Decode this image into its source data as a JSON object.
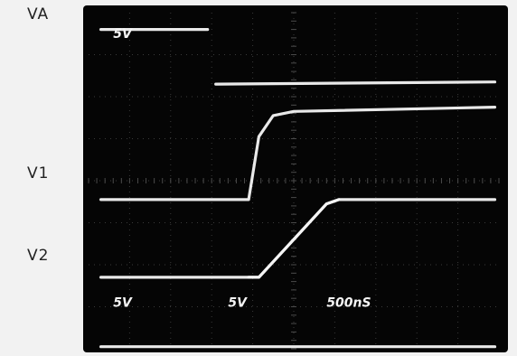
{
  "chart_data": {
    "type": "line",
    "title": "",
    "xlabel": "",
    "ylabel": "",
    "grid": true,
    "x_unit": "div",
    "y_unit": "div",
    "xlim": [
      0,
      10
    ],
    "ylim": [
      -4,
      4
    ],
    "channel_labels": [
      "VA",
      "V1",
      "V2"
    ],
    "scale_annotations": [
      {
        "id": "va_volts",
        "text": "5V",
        "x": 0.6,
        "y": 3.4
      },
      {
        "id": "ch1_volts",
        "text": "5V",
        "x": 0.6,
        "y": -3.0
      },
      {
        "id": "ch2_volts",
        "text": "5V",
        "x": 3.4,
        "y": -3.0
      },
      {
        "id": "timebase",
        "text": "500nS",
        "x": 5.8,
        "y": -3.0
      }
    ],
    "series": [
      {
        "label_index": 0,
        "x": [
          0.3,
          2.9,
          null,
          3.1,
          9.9
        ],
        "y": [
          3.6,
          3.6,
          null,
          2.3,
          2.35
        ]
      },
      {
        "label_index": 1,
        "x": [
          0.3,
          3.9,
          4.15,
          4.5,
          5.0,
          9.9
        ],
        "y": [
          -0.45,
          -0.45,
          1.05,
          1.55,
          1.65,
          1.75
        ]
      },
      {
        "label_index": 1,
        "x": [
          3.9,
          4.15,
          5.8,
          6.1,
          9.9
        ],
        "y": [
          -2.3,
          -2.3,
          -0.55,
          -0.45,
          -0.45
        ]
      },
      {
        "label_index": 2,
        "x": [
          0.3,
          3.9,
          4.15,
          5.8,
          6.1
        ],
        "y": [
          -2.3,
          -2.3,
          -2.3,
          -0.55,
          -0.45
        ]
      },
      {
        "label_index": -1,
        "x": [
          0.3,
          9.9
        ],
        "y": [
          -3.95,
          -3.95
        ]
      }
    ]
  }
}
